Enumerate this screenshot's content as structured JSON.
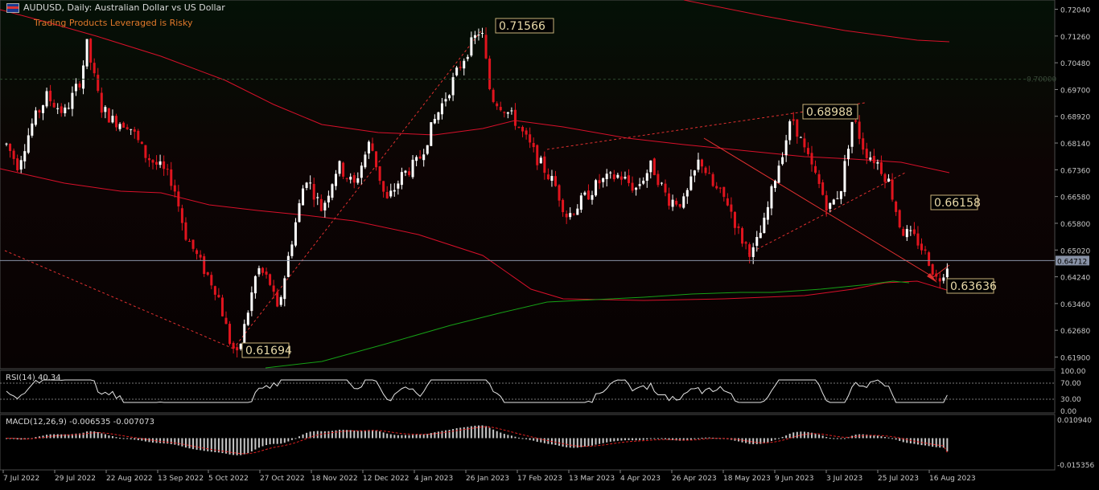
{
  "header": {
    "symbol": "AUDUSD",
    "timeframe": "Daily",
    "description": "Australian Dollar vs US Dollar",
    "title_text": "AUDUSD, Daily:  Australian Dollar vs US Dollar",
    "warning": "Trading Products Leveraged is Risky"
  },
  "colors": {
    "background": "#000000",
    "bull": "#ffffff",
    "bear": "#e0141e",
    "band_upper": "#d8102a",
    "band_lower": "#16a016",
    "annotation": "#e03030",
    "label_border": "#c8b27a",
    "label_text": "#e8d9a8"
  },
  "price_axis": {
    "ticks": [
      "0.72040",
      "0.71260",
      "0.70480",
      "0.69700",
      "0.68920",
      "0.68140",
      "0.67360",
      "0.66580",
      "0.65800",
      "0.65020",
      "0.64240",
      "0.63460",
      "0.62680",
      "0.61900"
    ],
    "current_price": "0.64712",
    "level_marker": "0.70000"
  },
  "time_axis": [
    "7 Jul 2022",
    "29 Jul 2022",
    "22 Aug 2022",
    "13 Sep 2022",
    "5 Oct 2022",
    "27 Oct 2022",
    "18 Nov 2022",
    "12 Dec 2022",
    "4 Jan 2023",
    "26 Jan 2023",
    "17 Feb 2023",
    "13 Mar 2023",
    "4 Apr 2023",
    "26 Apr 2023",
    "18 May 2023",
    "9 Jun 2023",
    "3 Jul 2023",
    "25 Jul 2023",
    "16 Aug 2023"
  ],
  "annotations": [
    "0.71566",
    "0.68988",
    "0.66158",
    "0.63636",
    "0.61694"
  ],
  "rsi": {
    "label": "RSI(14) 40.34",
    "value": 40.34,
    "levels": [
      "100.00",
      "70.00",
      "30.00",
      "0.00"
    ]
  },
  "macd": {
    "label": "MACD(12,26,9) -0.006535 -0.007073",
    "main": -0.006535,
    "signal": -0.007073,
    "axis_top": "0.010940",
    "axis_bottom": "-0.015356"
  },
  "chart_data": [
    {
      "type": "candlestick",
      "series": [
        {
          "name": "AUDUSD"
        }
      ],
      "x": [
        "2022-07-07",
        "2022-07-29",
        "2022-08-22",
        "2022-09-13",
        "2022-10-05",
        "2022-10-13",
        "2022-10-27",
        "2022-11-18",
        "2022-12-12",
        "2022-12-29",
        "2023-01-04",
        "2023-01-26",
        "2023-02-02",
        "2023-02-17",
        "2023-03-13",
        "2023-04-04",
        "2023-04-26",
        "2023-05-18",
        "2023-05-31",
        "2023-06-09",
        "2023-06-16",
        "2023-07-03",
        "2023-07-25",
        "2023-08-16",
        "2023-08-21"
      ],
      "close": [
        0.681,
        0.696,
        0.69,
        0.674,
        0.643,
        0.621,
        0.647,
        0.67,
        0.678,
        0.678,
        0.685,
        0.712,
        0.7,
        0.688,
        0.662,
        0.668,
        0.662,
        0.662,
        0.649,
        0.674,
        0.689,
        0.673,
        0.674,
        0.641,
        0.6471
      ],
      "ylim": [
        0.615,
        0.723
      ],
      "bands": "Bollinger-style envelope, upper red and lower green"
    },
    {
      "type": "line",
      "series": [
        {
          "name": "RSI(14)"
        }
      ],
      "ylim": [
        0,
        100
      ],
      "levels": [
        70,
        30
      ],
      "last": 40.34
    },
    {
      "type": "bar",
      "series": [
        {
          "name": "MACD(12,26,9)"
        }
      ],
      "ylim": [
        -0.015356,
        0.01094
      ],
      "main_last": -0.006535,
      "signal_last": -0.007073
    }
  ]
}
